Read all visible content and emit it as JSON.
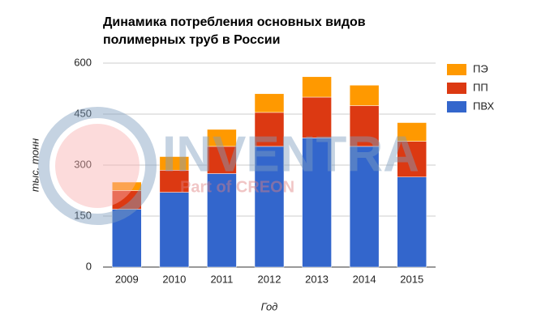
{
  "chart_data": {
    "type": "stacked_bar",
    "title": [
      "Динамика потребления основных видов",
      "полимерных труб в России"
    ],
    "x_label": "Год",
    "y_label": "тыс. тонн",
    "categories": [
      "2009",
      "2010",
      "2011",
      "2012",
      "2013",
      "2014",
      "2015"
    ],
    "series": [
      {
        "name": "ПВХ",
        "color": "#3366cc",
        "values": [
          170,
          220,
          275,
          355,
          380,
          355,
          265
        ]
      },
      {
        "name": "ПП",
        "color": "#dc3912",
        "values": [
          55,
          65,
          80,
          100,
          120,
          120,
          105
        ]
      },
      {
        "name": "ПЭ",
        "color": "#ff9900",
        "values": [
          25,
          40,
          50,
          55,
          60,
          60,
          55
        ]
      }
    ],
    "ylim": [
      0,
      600
    ],
    "yticks": [
      0,
      150,
      300,
      450,
      600
    ],
    "grid": true,
    "legend": "right",
    "watermark": {
      "text": "INVENTRA",
      "subtext": "Part of CREON"
    }
  }
}
